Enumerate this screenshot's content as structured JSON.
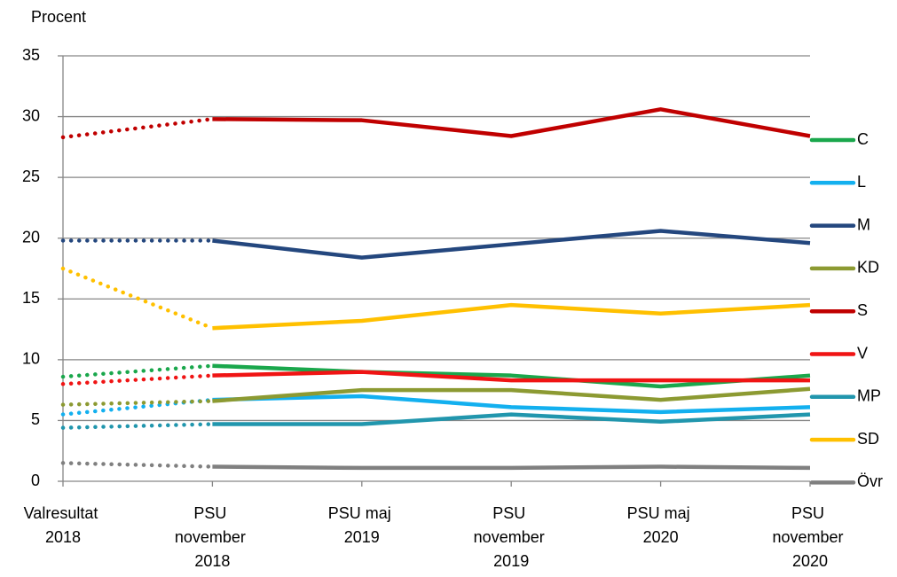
{
  "chart_data": {
    "type": "line",
    "y_label": "Procent",
    "categories": [
      "Valresultat 2018",
      "PSU november 2018",
      "PSU maj 2019",
      "PSU november 2019",
      "PSU maj 2020",
      "PSU november 2020"
    ],
    "series": [
      {
        "name": "C",
        "color": "#1aa74c",
        "values": [
          8.6,
          9.5,
          9.0,
          8.7,
          7.8,
          8.7
        ]
      },
      {
        "name": "L",
        "color": "#13b0ef",
        "values": [
          5.5,
          6.7,
          7.0,
          6.1,
          5.7,
          6.1
        ]
      },
      {
        "name": "M",
        "color": "#24477e",
        "values": [
          19.8,
          19.8,
          18.4,
          19.5,
          20.6,
          19.6
        ]
      },
      {
        "name": "KD",
        "color": "#8c9a32",
        "values": [
          6.3,
          6.6,
          7.5,
          7.5,
          6.7,
          7.6
        ]
      },
      {
        "name": "S",
        "color": "#c00000",
        "values": [
          28.3,
          29.8,
          29.7,
          28.4,
          30.6,
          28.4
        ]
      },
      {
        "name": "V",
        "color": "#f01414",
        "values": [
          8.0,
          8.7,
          9.0,
          8.3,
          8.3,
          8.3
        ]
      },
      {
        "name": "MP",
        "color": "#2196ad",
        "values": [
          4.4,
          4.7,
          4.7,
          5.5,
          4.9,
          5.5
        ]
      },
      {
        "name": "SD",
        "color": "#ffc000",
        "values": [
          17.5,
          12.6,
          13.2,
          14.5,
          13.8,
          14.5
        ]
      },
      {
        "name": "Övr",
        "color": "#808080",
        "values": [
          1.5,
          1.2,
          1.1,
          1.1,
          1.2,
          1.1
        ]
      }
    ],
    "ylim": [
      0,
      35
    ],
    "yticks": [
      0,
      5,
      10,
      15,
      20,
      25,
      30,
      35
    ],
    "grid": true,
    "first_segment_dotted": true,
    "legend": "right"
  }
}
